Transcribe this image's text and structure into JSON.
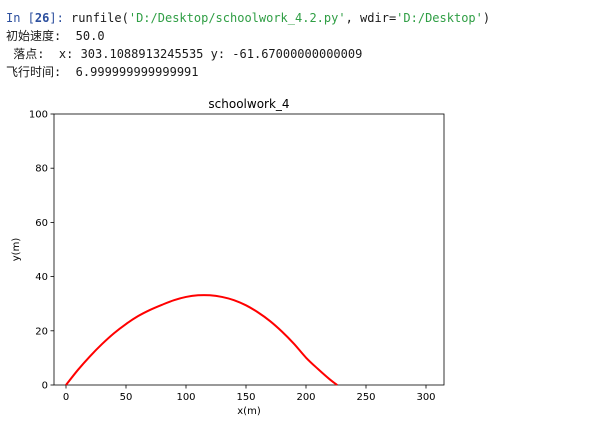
{
  "console": {
    "prompt_prefix": "In [",
    "prompt_number": "26",
    "prompt_suffix": "]:",
    "command_prefix": " runfile(",
    "command_file": "'D:/Desktop/schoolwork_4.2.py'",
    "command_mid": ", wdir=",
    "command_dir": "'D:/Desktop'",
    "command_end": ")",
    "line1": "初始速度:  50.0",
    "line2": " 落点:  x: 303.1088913245535 y: -61.67000000000009",
    "line3": "飞行时间:  6.999999999999991"
  },
  "chart_data": {
    "type": "line",
    "title": "schoolwork_4",
    "xlabel": "x(m)",
    "ylabel": "y(m)",
    "xlim": [
      -10,
      315
    ],
    "ylim": [
      0,
      100
    ],
    "xticks": [
      0,
      50,
      100,
      150,
      200,
      250,
      300
    ],
    "yticks": [
      0,
      20,
      40,
      60,
      80,
      100
    ],
    "series": [
      {
        "color": "#ff0000",
        "x": [
          0,
          10,
          20,
          30,
          40,
          50,
          60,
          70,
          80,
          90,
          100,
          110,
          120,
          130,
          140,
          150,
          160,
          170,
          180,
          190,
          200,
          210,
          220,
          226
        ],
        "y": [
          0,
          5.6,
          10.6,
          15.1,
          19.1,
          22.5,
          25.4,
          27.7,
          29.6,
          31.3,
          32.5,
          33.1,
          33.1,
          32.5,
          31.3,
          29.4,
          26.8,
          23.6,
          19.7,
          15.2,
          10.1,
          5.9,
          2.0,
          0
        ]
      }
    ]
  }
}
